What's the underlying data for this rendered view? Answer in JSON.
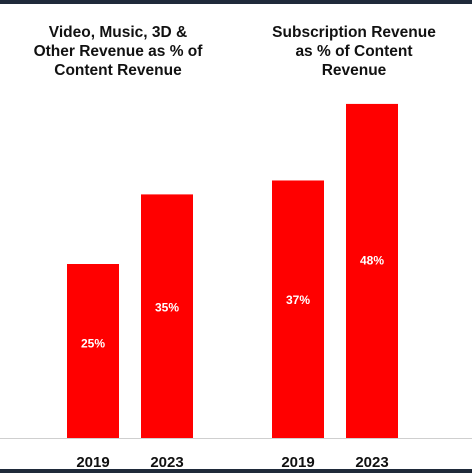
{
  "chart_data": [
    {
      "type": "bar",
      "title": "Video, Music, 3D &\nOther Revenue as % of\nContent Revenue",
      "categories": [
        "2019",
        "2023"
      ],
      "values": [
        25,
        35
      ],
      "value_labels": [
        "25%",
        "35%"
      ],
      "unit": "%",
      "ylim": [
        0,
        50
      ],
      "grid": false,
      "bar_color": "#ff0000"
    },
    {
      "type": "bar",
      "title": "Subscription Revenue\nas % of Content\nRevenue",
      "categories": [
        "2019",
        "2023"
      ],
      "values": [
        37,
        48
      ],
      "value_labels": [
        "37%",
        "48%"
      ],
      "unit": "%",
      "ylim": [
        0,
        50
      ],
      "grid": false,
      "bar_color": "#ff0000"
    }
  ],
  "colors": {
    "bar": "#ff0000",
    "label_text": "#ffffff",
    "axis": "#cfcfcf",
    "rule": "#1f2a3a"
  }
}
